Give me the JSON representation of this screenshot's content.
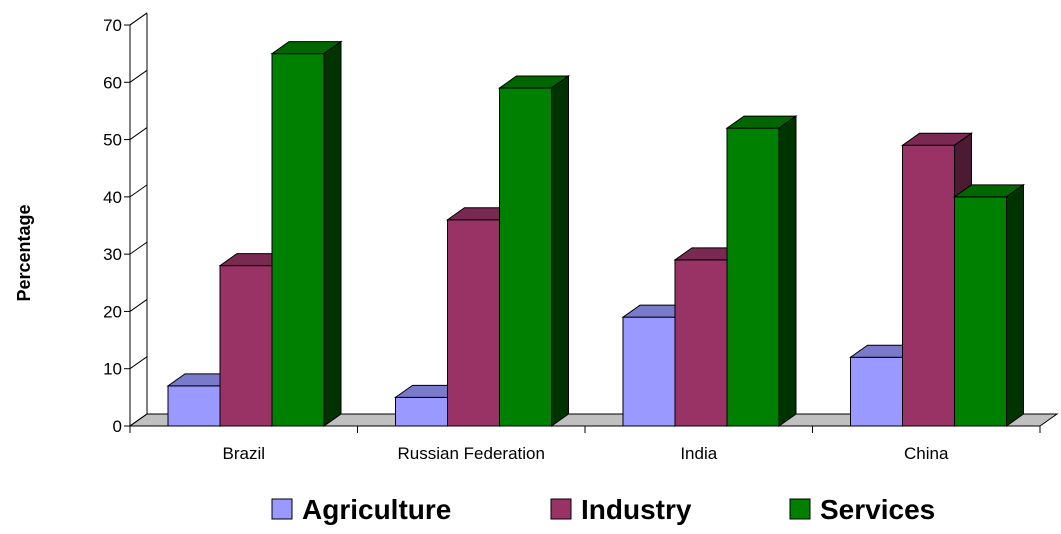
{
  "chart_data": {
    "type": "bar",
    "three_d": true,
    "categories": [
      "Brazil",
      "Russian Federation",
      "India",
      "China"
    ],
    "series": [
      {
        "name": "Agriculture",
        "values": [
          7,
          5,
          19,
          12
        ],
        "color": "#9999ff",
        "top_color": "#7a7acc",
        "side_color": "#4d4d99"
      },
      {
        "name": "Industry",
        "values": [
          28,
          36,
          29,
          49
        ],
        "color": "#993366",
        "top_color": "#7a2952",
        "side_color": "#4d1a33"
      },
      {
        "name": "Services",
        "values": [
          65,
          59,
          52,
          40
        ],
        "color": "#008000",
        "top_color": "#006600",
        "side_color": "#003300"
      }
    ],
    "title": "",
    "xlabel": "",
    "ylabel": "Percentage",
    "ylim": [
      0,
      70
    ],
    "yticks": [
      0,
      10,
      20,
      30,
      40,
      50,
      60,
      70
    ],
    "legend_position": "bottom",
    "grid": false,
    "floor_color": "#c0c0c0"
  }
}
